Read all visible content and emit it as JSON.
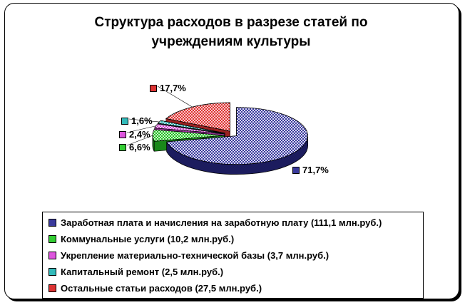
{
  "chart_data": {
    "type": "pie",
    "title_lines": [
      "Структура расходов в разрезе статей по",
      "учреждениям культуры"
    ],
    "slices": [
      {
        "label": "Заработная плата и начисления на заработную плату (111,1 млн.руб.)",
        "value": 111.1,
        "percent_label": "71,7%",
        "color": "#3a3a9c"
      },
      {
        "label": "Коммунальные услуги (10,2 млн.руб.)",
        "value": 10.2,
        "percent_label": "6,6%",
        "color": "#33cc33"
      },
      {
        "label": "Укрепление материально-технической базы (3,7 млн.руб.)",
        "value": 3.7,
        "percent_label": "2,4%",
        "color": "#dd55dd"
      },
      {
        "label": "Капитальный ремонт (2,5 млн.руб.)",
        "value": 2.5,
        "percent_label": "1,6%",
        "color": "#33bbbb"
      },
      {
        "label": "Остальные статьи расходов (27,5 млн.руб.)",
        "value": 27.5,
        "percent_label": "17,7%",
        "color": "#dd3333"
      }
    ],
    "legend_position": "bottom"
  }
}
